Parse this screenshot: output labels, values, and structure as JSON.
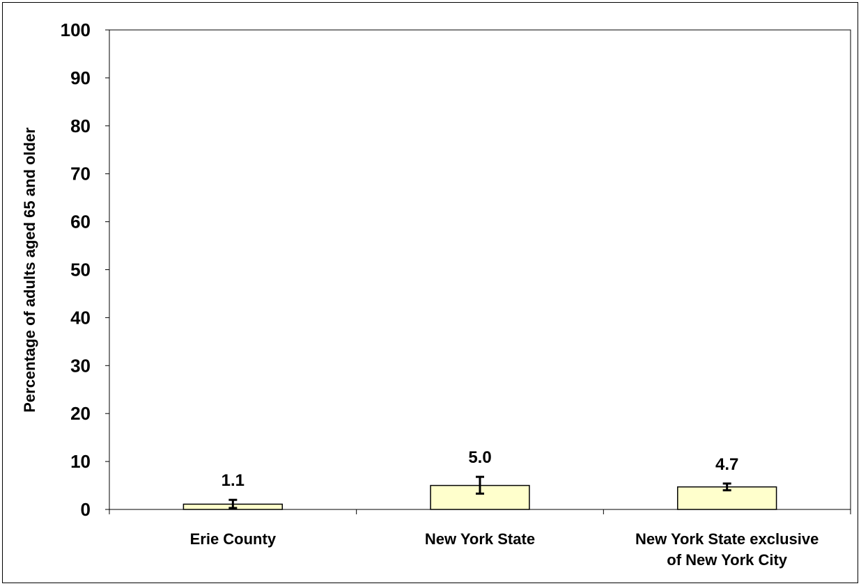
{
  "chart_data": {
    "type": "bar",
    "title": "",
    "xlabel": "",
    "ylabel": "Percentage of adults aged 65 and older",
    "ylim": [
      0,
      100
    ],
    "yticks": [
      0,
      10,
      20,
      30,
      40,
      50,
      60,
      70,
      80,
      90,
      100
    ],
    "categories": [
      [
        "Erie County"
      ],
      [
        "New York State"
      ],
      [
        "New York State exclusive",
        "of New York City"
      ]
    ],
    "values": [
      1.1,
      5.0,
      4.7
    ],
    "value_labels": [
      "1.1",
      "5.0",
      "4.7"
    ],
    "error_low": [
      0.3,
      3.3,
      4.0
    ],
    "error_high": [
      2.0,
      6.8,
      5.4
    ],
    "grid": false,
    "legend": "none",
    "bar_color": "#ffffcc"
  }
}
